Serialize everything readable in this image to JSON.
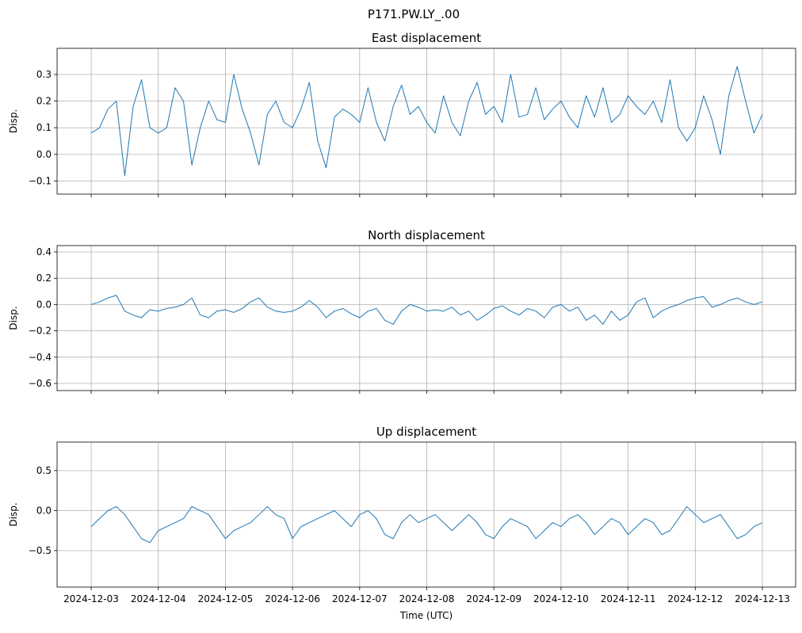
{
  "title": "P171.PW.LY_.00",
  "chart_data": [
    {
      "type": "line",
      "title": "East displacement",
      "ylabel": "Disp.",
      "grid": true,
      "x": [
        "2024-12-03T00:00",
        "2024-12-03T03:00",
        "2024-12-03T06:00",
        "2024-12-03T09:00",
        "2024-12-03T12:00",
        "2024-12-03T15:00",
        "2024-12-03T18:00",
        "2024-12-03T21:00",
        "2024-12-04T00:00",
        "2024-12-04T03:00",
        "2024-12-04T06:00",
        "2024-12-04T09:00",
        "2024-12-04T12:00",
        "2024-12-04T15:00",
        "2024-12-04T18:00",
        "2024-12-04T21:00",
        "2024-12-05T00:00",
        "2024-12-05T03:00",
        "2024-12-05T06:00",
        "2024-12-05T09:00",
        "2024-12-05T12:00",
        "2024-12-05T15:00",
        "2024-12-05T18:00",
        "2024-12-05T21:00",
        "2024-12-06T00:00",
        "2024-12-06T03:00",
        "2024-12-06T06:00",
        "2024-12-06T09:00",
        "2024-12-06T12:00",
        "2024-12-06T15:00",
        "2024-12-06T18:00",
        "2024-12-06T21:00",
        "2024-12-07T00:00",
        "2024-12-07T03:00",
        "2024-12-07T06:00",
        "2024-12-07T09:00",
        "2024-12-07T12:00",
        "2024-12-07T15:00",
        "2024-12-07T18:00",
        "2024-12-07T21:00",
        "2024-12-08T00:00",
        "2024-12-08T03:00",
        "2024-12-08T06:00",
        "2024-12-08T09:00",
        "2024-12-08T12:00",
        "2024-12-08T15:00",
        "2024-12-08T18:00",
        "2024-12-08T21:00",
        "2024-12-09T00:00",
        "2024-12-09T03:00",
        "2024-12-09T06:00",
        "2024-12-09T09:00",
        "2024-12-09T12:00",
        "2024-12-09T15:00",
        "2024-12-09T18:00",
        "2024-12-09T21:00",
        "2024-12-10T00:00",
        "2024-12-10T03:00",
        "2024-12-10T06:00",
        "2024-12-10T09:00",
        "2024-12-10T12:00",
        "2024-12-10T15:00",
        "2024-12-10T18:00",
        "2024-12-10T21:00",
        "2024-12-11T00:00",
        "2024-12-11T03:00",
        "2024-12-11T06:00",
        "2024-12-11T09:00",
        "2024-12-11T12:00",
        "2024-12-11T15:00",
        "2024-12-11T18:00",
        "2024-12-11T21:00",
        "2024-12-12T00:00",
        "2024-12-12T03:00",
        "2024-12-12T06:00",
        "2024-12-12T09:00",
        "2024-12-12T12:00",
        "2024-12-12T15:00",
        "2024-12-12T18:00",
        "2024-12-12T21:00",
        "2024-12-13T00:00"
      ],
      "series": [
        {
          "color": "#1f77b4",
          "values": [
            0.08,
            0.1,
            0.17,
            0.2,
            -0.08,
            0.18,
            0.28,
            0.1,
            0.08,
            0.1,
            0.25,
            0.2,
            -0.04,
            0.1,
            0.2,
            0.13,
            0.12,
            0.3,
            0.17,
            0.08,
            -0.04,
            0.15,
            0.2,
            0.12,
            0.1,
            0.17,
            0.27,
            0.05,
            -0.05,
            0.14,
            0.17,
            0.15,
            0.12,
            0.25,
            0.12,
            0.05,
            0.18,
            0.26,
            0.15,
            0.18,
            0.12,
            0.08,
            0.22,
            0.12,
            0.07,
            0.2,
            0.27,
            0.15,
            0.18,
            0.12,
            0.3,
            0.14,
            0.15,
            0.25,
            0.13,
            0.17,
            0.2,
            0.14,
            0.1,
            0.22,
            0.14,
            0.25,
            0.12,
            0.15,
            0.22,
            0.18,
            0.15,
            0.2,
            0.12,
            0.28,
            0.1,
            0.05,
            0.1,
            0.22,
            0.13,
            0.0,
            0.22,
            0.33,
            0.2,
            0.08,
            0.15
          ]
        }
      ],
      "xlim": [
        "2024-12-02T11:48",
        "2024-12-13T11:54"
      ],
      "ylim": [
        -0.149,
        0.398
      ],
      "yticks": [
        {
          "value": -0.1,
          "label": "−0.1"
        },
        {
          "value": 0,
          "label": "0.0"
        },
        0.1,
        0.2,
        0.3
      ]
    },
    {
      "type": "line",
      "title": "North displacement",
      "ylabel": "Disp.",
      "grid": true,
      "x": [
        "2024-12-03T00:00",
        "2024-12-03T03:00",
        "2024-12-03T06:00",
        "2024-12-03T09:00",
        "2024-12-03T12:00",
        "2024-12-03T15:00",
        "2024-12-03T18:00",
        "2024-12-03T21:00",
        "2024-12-04T00:00",
        "2024-12-04T03:00",
        "2024-12-04T06:00",
        "2024-12-04T09:00",
        "2024-12-04T12:00",
        "2024-12-04T15:00",
        "2024-12-04T18:00",
        "2024-12-04T21:00",
        "2024-12-05T00:00",
        "2024-12-05T03:00",
        "2024-12-05T06:00",
        "2024-12-05T09:00",
        "2024-12-05T12:00",
        "2024-12-05T15:00",
        "2024-12-05T18:00",
        "2024-12-05T21:00",
        "2024-12-06T00:00",
        "2024-12-06T03:00",
        "2024-12-06T06:00",
        "2024-12-06T09:00",
        "2024-12-06T12:00",
        "2024-12-06T15:00",
        "2024-12-06T18:00",
        "2024-12-06T21:00",
        "2024-12-07T00:00",
        "2024-12-07T03:00",
        "2024-12-07T06:00",
        "2024-12-07T09:00",
        "2024-12-07T12:00",
        "2024-12-07T15:00",
        "2024-12-07T18:00",
        "2024-12-07T21:00",
        "2024-12-08T00:00",
        "2024-12-08T03:00",
        "2024-12-08T06:00",
        "2024-12-08T09:00",
        "2024-12-08T12:00",
        "2024-12-08T15:00",
        "2024-12-08T18:00",
        "2024-12-08T21:00",
        "2024-12-09T00:00",
        "2024-12-09T03:00",
        "2024-12-09T06:00",
        "2024-12-09T09:00",
        "2024-12-09T12:00",
        "2024-12-09T15:00",
        "2024-12-09T18:00",
        "2024-12-09T21:00",
        "2024-12-10T00:00",
        "2024-12-10T03:00",
        "2024-12-10T06:00",
        "2024-12-10T09:00",
        "2024-12-10T12:00",
        "2024-12-10T15:00",
        "2024-12-10T18:00",
        "2024-12-10T21:00",
        "2024-12-11T00:00",
        "2024-12-11T03:00",
        "2024-12-11T06:00",
        "2024-12-11T09:00",
        "2024-12-11T12:00",
        "2024-12-11T15:00",
        "2024-12-11T18:00",
        "2024-12-11T21:00",
        "2024-12-12T00:00",
        "2024-12-12T03:00",
        "2024-12-12T06:00",
        "2024-12-12T09:00",
        "2024-12-12T12:00",
        "2024-12-12T15:00",
        "2024-12-12T18:00",
        "2024-12-12T21:00",
        "2024-12-13T00:00"
      ],
      "series": [
        {
          "color": "#1f77b4",
          "values": [
            0,
            0.02,
            0.05,
            0.07,
            -0.05,
            -0.08,
            -0.1,
            -0.04,
            -0.05,
            -0.03,
            -0.02,
            0.0,
            0.05,
            -0.08,
            -0.1,
            -0.05,
            -0.04,
            -0.06,
            -0.03,
            0.02,
            0.05,
            -0.02,
            -0.05,
            -0.06,
            -0.05,
            -0.02,
            0.03,
            -0.02,
            -0.1,
            -0.05,
            -0.03,
            -0.07,
            -0.1,
            -0.05,
            -0.03,
            -0.12,
            -0.15,
            -0.05,
            0.0,
            -0.02,
            -0.05,
            -0.04,
            -0.05,
            -0.02,
            -0.08,
            -0.05,
            -0.12,
            -0.08,
            -0.03,
            -0.01,
            -0.05,
            -0.08,
            -0.03,
            -0.05,
            -0.1,
            -0.02,
            0.0,
            -0.05,
            -0.02,
            -0.12,
            -0.08,
            -0.15,
            -0.05,
            -0.12,
            -0.08,
            0.02,
            0.05,
            -0.1,
            -0.05,
            -0.02,
            0.0,
            0.03,
            0.05,
            0.06,
            -0.02,
            0.0,
            0.03,
            0.05,
            0.02,
            0.0,
            0.02
          ]
        }
      ],
      "xlim": [
        "2024-12-02T11:48",
        "2024-12-13T11:54"
      ],
      "ylim": [
        -0.654,
        0.448
      ],
      "yticks": [
        {
          "value": -0.6,
          "label": "−0.6"
        },
        {
          "value": -0.4,
          "label": "−0.4"
        },
        {
          "value": -0.2,
          "label": "−0.2"
        },
        {
          "value": 0,
          "label": "0.0"
        },
        0.2,
        0.4
      ]
    },
    {
      "type": "line",
      "title": "Up displacement",
      "ylabel": "Disp.",
      "xlabel": "Time (UTC)",
      "grid": true,
      "x": [
        "2024-12-03T00:00",
        "2024-12-03T03:00",
        "2024-12-03T06:00",
        "2024-12-03T09:00",
        "2024-12-03T12:00",
        "2024-12-03T15:00",
        "2024-12-03T18:00",
        "2024-12-03T21:00",
        "2024-12-04T00:00",
        "2024-12-04T03:00",
        "2024-12-04T06:00",
        "2024-12-04T09:00",
        "2024-12-04T12:00",
        "2024-12-04T15:00",
        "2024-12-04T18:00",
        "2024-12-04T21:00",
        "2024-12-05T00:00",
        "2024-12-05T03:00",
        "2024-12-05T06:00",
        "2024-12-05T09:00",
        "2024-12-05T12:00",
        "2024-12-05T15:00",
        "2024-12-05T18:00",
        "2024-12-05T21:00",
        "2024-12-06T00:00",
        "2024-12-06T03:00",
        "2024-12-06T06:00",
        "2024-12-06T09:00",
        "2024-12-06T12:00",
        "2024-12-06T15:00",
        "2024-12-06T18:00",
        "2024-12-06T21:00",
        "2024-12-07T00:00",
        "2024-12-07T03:00",
        "2024-12-07T06:00",
        "2024-12-07T09:00",
        "2024-12-07T12:00",
        "2024-12-07T15:00",
        "2024-12-07T18:00",
        "2024-12-07T21:00",
        "2024-12-08T00:00",
        "2024-12-08T03:00",
        "2024-12-08T06:00",
        "2024-12-08T09:00",
        "2024-12-08T12:00",
        "2024-12-08T15:00",
        "2024-12-08T18:00",
        "2024-12-08T21:00",
        "2024-12-09T00:00",
        "2024-12-09T03:00",
        "2024-12-09T06:00",
        "2024-12-09T09:00",
        "2024-12-09T12:00",
        "2024-12-09T15:00",
        "2024-12-09T18:00",
        "2024-12-09T21:00",
        "2024-12-10T00:00",
        "2024-12-10T03:00",
        "2024-12-10T06:00",
        "2024-12-10T09:00",
        "2024-12-10T12:00",
        "2024-12-10T15:00",
        "2024-12-10T18:00",
        "2024-12-10T21:00",
        "2024-12-11T00:00",
        "2024-12-11T03:00",
        "2024-12-11T06:00",
        "2024-12-11T09:00",
        "2024-12-11T12:00",
        "2024-12-11T15:00",
        "2024-12-11T18:00",
        "2024-12-11T21:00",
        "2024-12-12T00:00",
        "2024-12-12T03:00",
        "2024-12-12T06:00",
        "2024-12-12T09:00",
        "2024-12-12T12:00",
        "2024-12-12T15:00",
        "2024-12-12T18:00",
        "2024-12-12T21:00",
        "2024-12-13T00:00"
      ],
      "series": [
        {
          "color": "#1f77b4",
          "values": [
            -0.2,
            -0.1,
            0.0,
            0.05,
            -0.05,
            -0.2,
            -0.35,
            -0.4,
            -0.25,
            -0.2,
            -0.15,
            -0.1,
            0.05,
            0.0,
            -0.05,
            -0.2,
            -0.35,
            -0.25,
            -0.2,
            -0.15,
            -0.05,
            0.05,
            -0.05,
            -0.1,
            -0.35,
            -0.2,
            -0.15,
            -0.1,
            -0.05,
            0.0,
            -0.1,
            -0.2,
            -0.05,
            0.0,
            -0.1,
            -0.3,
            -0.35,
            -0.15,
            -0.05,
            -0.15,
            -0.1,
            -0.05,
            -0.15,
            -0.25,
            -0.15,
            -0.05,
            -0.15,
            -0.3,
            -0.35,
            -0.2,
            -0.1,
            -0.15,
            -0.2,
            -0.35,
            -0.25,
            -0.15,
            -0.2,
            -0.1,
            -0.05,
            -0.15,
            -0.3,
            -0.2,
            -0.1,
            -0.15,
            -0.3,
            -0.2,
            -0.1,
            -0.15,
            -0.3,
            -0.25,
            -0.1,
            0.05,
            -0.05,
            -0.15,
            -0.1,
            -0.05,
            -0.2,
            -0.35,
            -0.3,
            -0.2,
            -0.15
          ]
        }
      ],
      "xlim": [
        "2024-12-02T11:48",
        "2024-12-13T11:54"
      ],
      "xticks": [
        "2024-12-03",
        "2024-12-04",
        "2024-12-05",
        "2024-12-06",
        "2024-12-07",
        "2024-12-08",
        "2024-12-09",
        "2024-12-10",
        "2024-12-11",
        "2024-12-12",
        "2024-12-13"
      ],
      "ylim": [
        -0.955,
        0.856
      ],
      "yticks": [
        {
          "value": -0.5,
          "label": "−0.5"
        },
        {
          "value": 0,
          "label": "0.0"
        },
        0.5
      ]
    }
  ]
}
